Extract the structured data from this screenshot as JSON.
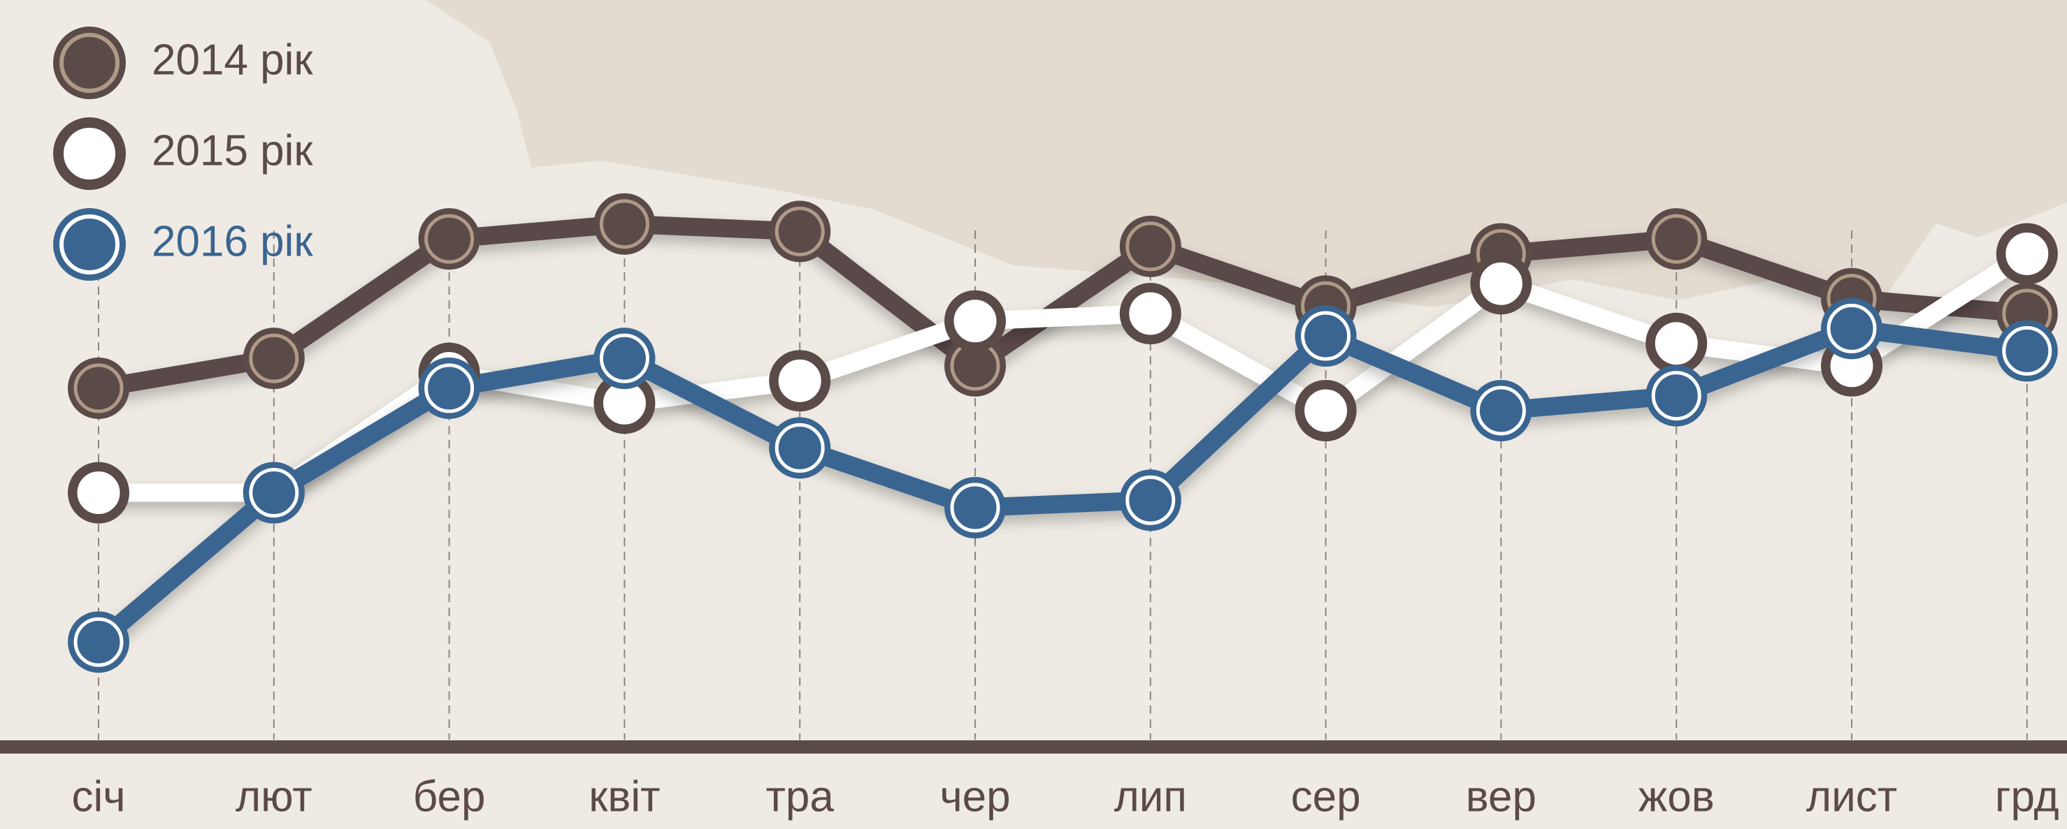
{
  "chart_data": {
    "type": "line",
    "categories": [
      "січ",
      "лют",
      "бер",
      "квіт",
      "тра",
      "чер",
      "лип",
      "сер",
      "вер",
      "жов",
      "лист",
      "грд"
    ],
    "ylim": [
      0,
      100
    ],
    "series": [
      {
        "name": "2014 рік",
        "color": "#5a4a48",
        "values": [
          48,
          52,
          68,
          70,
          69,
          51,
          67,
          59,
          66,
          68,
          60,
          58
        ]
      },
      {
        "name": "2015 рік",
        "color": "#ffffff",
        "values": [
          34,
          34,
          50,
          46,
          49,
          57,
          58,
          45,
          62,
          54,
          51,
          66
        ]
      },
      {
        "name": "2016 рік",
        "color": "#3a6591",
        "values": [
          14,
          34,
          48,
          52,
          40,
          32,
          33,
          55,
          45,
          47,
          56,
          53
        ]
      }
    ]
  }
}
